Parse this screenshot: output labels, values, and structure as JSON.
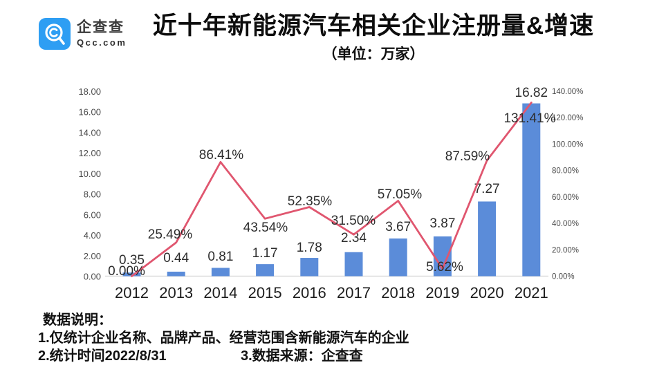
{
  "brand": {
    "name": "企查查",
    "domain": "Qcc.com",
    "logo_color": "#2E9EF3"
  },
  "header": {
    "title": "近十年新能源汽车相关企业注册量&增速",
    "subtitle": "（单位：万家）"
  },
  "chart_data": {
    "type": "bar+line",
    "title": "近十年新能源汽车相关企业注册量&增速",
    "unit": "万家",
    "grid": false,
    "legend": false,
    "categories": [
      "2012",
      "2013",
      "2014",
      "2015",
      "2016",
      "2017",
      "2018",
      "2019",
      "2020",
      "2021"
    ],
    "series": [
      {
        "name": "注册量",
        "type": "bar",
        "axis": "left",
        "color": "#5B8CD9",
        "values": [
          0.35,
          0.44,
          0.81,
          1.17,
          1.78,
          2.34,
          3.67,
          3.87,
          7.27,
          16.82
        ],
        "labels": [
          "0.35",
          "0.44",
          "0.81",
          "1.17",
          "1.78",
          "2.34",
          "3.67",
          "3.87",
          "7.27",
          "16.82"
        ]
      },
      {
        "name": "增速",
        "type": "line",
        "axis": "right",
        "color": "#E0566F",
        "values": [
          0.0,
          25.49,
          86.41,
          43.54,
          52.35,
          31.5,
          57.05,
          5.62,
          87.59,
          131.41
        ],
        "labels": [
          "0.00%",
          "25.49%",
          "86.41%",
          "43.54%",
          "52.35%",
          "31.50%",
          "57.05%",
          "5.62%",
          "87.59%",
          "131.41%"
        ]
      }
    ],
    "left_axis": {
      "min": 0,
      "max": 18,
      "step": 2,
      "labels": [
        "0.00",
        "2.00",
        "4.00",
        "6.00",
        "8.00",
        "10.00",
        "12.00",
        "14.00",
        "16.00",
        "18.00"
      ]
    },
    "right_axis": {
      "min": 0,
      "max": 140,
      "step": 20,
      "labels": [
        "0.00%",
        "20.00%",
        "40.00%",
        "60.00%",
        "80.00%",
        "100.00%",
        "120.00%",
        "140.00%"
      ]
    }
  },
  "footer": {
    "heading": "数据说明：",
    "note1": "1.仅统计企业名称、品牌产品、经营范围含新能源汽车的企业",
    "note2": "2.统计时间2022/8/31",
    "note3": "3.数据来源：企查查"
  }
}
